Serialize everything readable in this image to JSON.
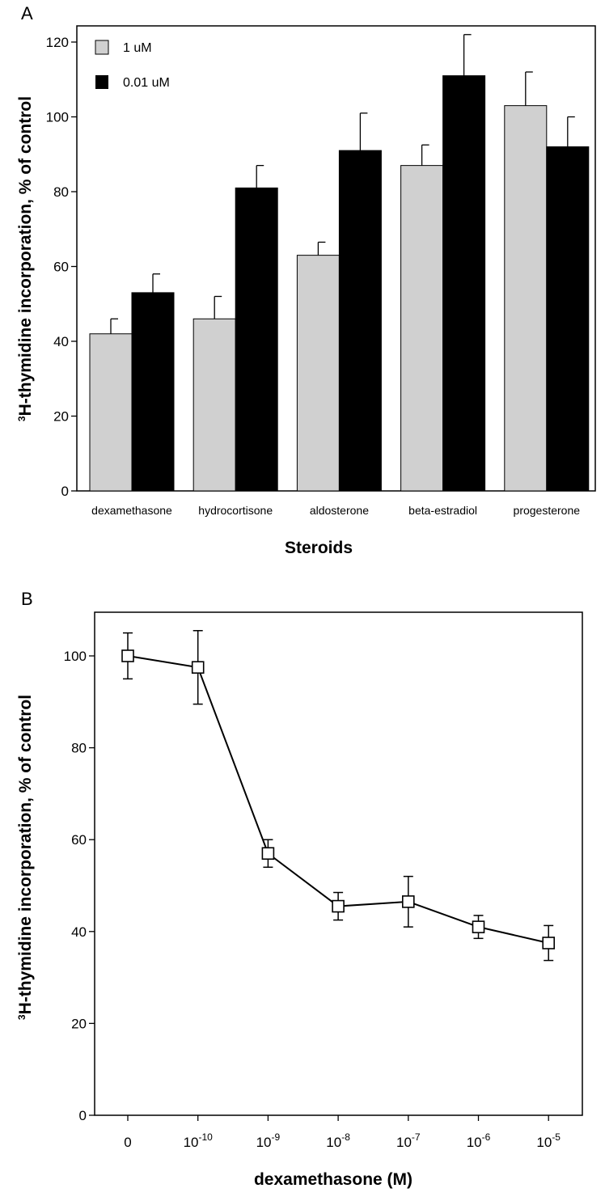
{
  "panel_a_letter": "A",
  "panel_b_letter": "B",
  "chart_data": [
    {
      "type": "bar",
      "categories": [
        "dexamethasone",
        "hydrocortisone",
        "aldosterone",
        "beta-estradiol",
        "progesterone"
      ],
      "series": [
        {
          "name": "1 uM",
          "color": "#d0d0d0",
          "values": [
            42,
            46,
            63,
            87,
            103
          ],
          "errors": [
            4,
            6,
            3.5,
            5.5,
            9
          ]
        },
        {
          "name": "0.01 uM",
          "color": "#000000",
          "values": [
            53,
            81,
            91,
            111,
            92
          ],
          "errors": [
            5,
            6,
            10,
            11,
            8
          ]
        }
      ],
      "xlabel": "Steroids",
      "ylabel_sup": "3",
      "ylabel": "H-thymidine incorporation, % of control",
      "ylim": [
        0,
        120
      ],
      "yticks": [
        "0",
        "20",
        "40",
        "60",
        "80",
        "100",
        "120"
      ],
      "legend": "top-left",
      "grid": false
    },
    {
      "type": "line",
      "x": [
        "0",
        "10-10",
        "10-9",
        "10-8",
        "10-7",
        "10-6",
        "10-5"
      ],
      "x_ticks": [
        {
          "base": "0",
          "exp": ""
        },
        {
          "base": "10",
          "exp": "-10"
        },
        {
          "base": "10",
          "exp": "-9"
        },
        {
          "base": "10",
          "exp": "-8"
        },
        {
          "base": "10",
          "exp": "-7"
        },
        {
          "base": "10",
          "exp": "-6"
        },
        {
          "base": "10",
          "exp": "-5"
        }
      ],
      "y": [
        100,
        97.5,
        57,
        45.5,
        46.5,
        41,
        37.5
      ],
      "errors": [
        5,
        8,
        3,
        3,
        5.5,
        2.5,
        3.8
      ],
      "marker": "open-square",
      "xlabel": "dexamethasone (M)",
      "ylabel_sup": "3",
      "ylabel": "H-thymidine incorporation, % of control",
      "ylim": [
        0,
        110
      ],
      "yticks": [
        "0",
        "20",
        "40",
        "60",
        "80",
        "100"
      ],
      "grid": false
    }
  ]
}
